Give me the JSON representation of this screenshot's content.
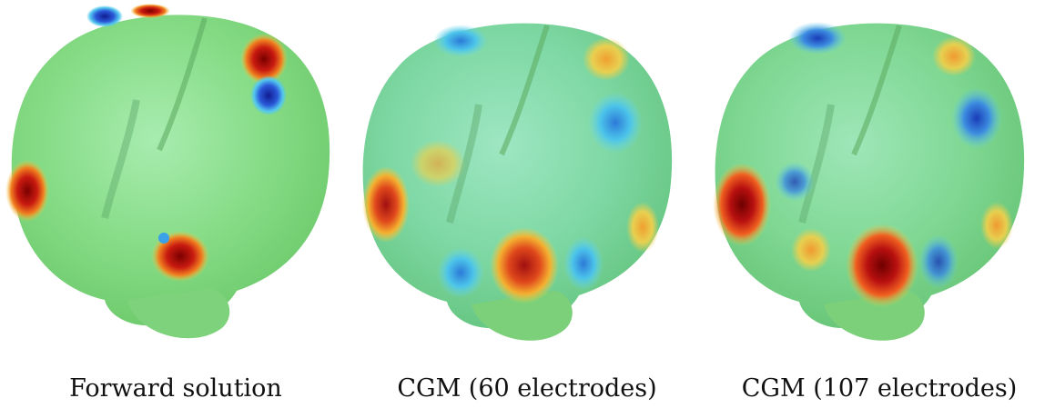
{
  "figure": {
    "panels": [
      {
        "caption": "Forward solution"
      },
      {
        "caption": "CGM (60 electrodes)"
      },
      {
        "caption": "CGM (107 electrodes)"
      }
    ],
    "colors": {
      "brain_base": "#7fd87a",
      "brain_highlight": "#9be6a0",
      "positive_peak": "#8b0000",
      "positive": "#e8401c",
      "warm": "#f4c430",
      "negative": "#2244cc",
      "negative_light": "#4fc3e8"
    }
  }
}
